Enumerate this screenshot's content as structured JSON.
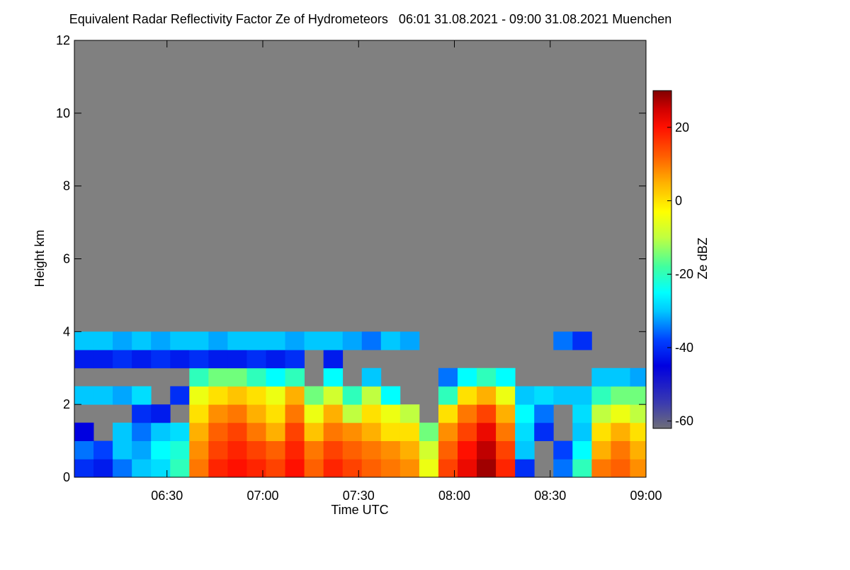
{
  "chart_data": {
    "type": "heatmap",
    "title": "Equivalent Radar Reflectivity Factor Ze of Hydrometeors   06:01 31.08.2021 - 09:00 31.08.2021 Muenchen",
    "x_label": "Time UTC",
    "y_label": "Height km",
    "colorbar_label": "Ze dBZ",
    "xlim": [
      361,
      540
    ],
    "xticks": [
      {
        "value": 390,
        "label": "06:30"
      },
      {
        "value": 420,
        "label": "07:00"
      },
      {
        "value": 450,
        "label": "07:30"
      },
      {
        "value": 480,
        "label": "08:00"
      },
      {
        "value": 510,
        "label": "08:30"
      },
      {
        "value": 540,
        "label": "09:00"
      }
    ],
    "ylim": [
      0,
      12
    ],
    "yticks": [
      0,
      2,
      4,
      6,
      8,
      10,
      12
    ],
    "zlim": [
      -62,
      30
    ],
    "zticks": [
      -60,
      -40,
      -20,
      0,
      20
    ],
    "no_echo_color": "#808080",
    "colormap": [
      [
        -62,
        "#6e6e78"
      ],
      [
        -55,
        "#3a3ab0"
      ],
      [
        -45,
        "#0000e0"
      ],
      [
        -38,
        "#0040ff"
      ],
      [
        -30,
        "#00c8ff"
      ],
      [
        -25,
        "#00ffff"
      ],
      [
        -18,
        "#40ffa0"
      ],
      [
        -10,
        "#c0ff40"
      ],
      [
        -3,
        "#ffff00"
      ],
      [
        5,
        "#ffb000"
      ],
      [
        12,
        "#ff6000"
      ],
      [
        20,
        "#ff1000"
      ],
      [
        25,
        "#d00000"
      ],
      [
        30,
        "#800000"
      ]
    ],
    "x": [
      361,
      367,
      373,
      379,
      385,
      391,
      397,
      403,
      409,
      415,
      421,
      427,
      433,
      439,
      445,
      451,
      457,
      463,
      469,
      475,
      481,
      487,
      493,
      499,
      505,
      511,
      517,
      523,
      529,
      535,
      540
    ],
    "y": [
      0,
      0.5,
      1,
      1.5,
      2,
      2.5,
      3,
      3.5,
      4
    ],
    "z": [
      [
        -40,
        -42,
        -35,
        -30,
        -28,
        -20,
        10,
        18,
        20,
        18,
        15,
        20,
        12,
        18,
        15,
        12,
        10,
        8,
        -5,
        15,
        22,
        28,
        18,
        -40,
        null,
        -35,
        -20,
        10,
        12,
        8
      ],
      [
        -35,
        -38,
        -30,
        -32,
        -25,
        -22,
        8,
        15,
        18,
        15,
        12,
        18,
        10,
        15,
        12,
        10,
        8,
        5,
        -8,
        12,
        20,
        26,
        15,
        -30,
        null,
        -38,
        -25,
        5,
        10,
        5
      ],
      [
        -45,
        null,
        -30,
        -35,
        -30,
        -28,
        5,
        12,
        15,
        10,
        5,
        15,
        3,
        10,
        8,
        5,
        0,
        0,
        -15,
        8,
        15,
        22,
        10,
        -28,
        -40,
        null,
        -30,
        0,
        5,
        0
      ],
      [
        null,
        null,
        null,
        -40,
        -42,
        null,
        0,
        8,
        10,
        5,
        0,
        10,
        -5,
        5,
        -10,
        0,
        -5,
        -10,
        null,
        0,
        10,
        15,
        5,
        -25,
        -35,
        null,
        -28,
        -10,
        -5,
        -10
      ],
      [
        -30,
        -30,
        -32,
        -28,
        null,
        -40,
        -5,
        0,
        3,
        0,
        -5,
        5,
        -15,
        -8,
        -20,
        -10,
        -25,
        null,
        null,
        -20,
        0,
        5,
        -5,
        -30,
        -28,
        -30,
        -30,
        -20,
        -15,
        -15
      ],
      [
        null,
        null,
        null,
        null,
        null,
        null,
        -20,
        -15,
        -15,
        -20,
        -25,
        -20,
        null,
        -25,
        null,
        -30,
        null,
        null,
        null,
        -35,
        -25,
        -20,
        -25,
        null,
        null,
        null,
        null,
        -30,
        -30,
        -32
      ],
      [
        -42,
        -42,
        -40,
        -42,
        -40,
        -42,
        -40,
        -42,
        -42,
        -40,
        -42,
        -40,
        null,
        -42,
        null,
        null,
        null,
        null,
        null,
        null,
        null,
        null,
        null,
        null,
        null,
        null,
        null,
        null,
        null,
        null
      ],
      [
        -30,
        -30,
        -32,
        -30,
        -32,
        -30,
        -30,
        -32,
        -30,
        -30,
        -30,
        -32,
        -30,
        -30,
        -32,
        -35,
        -30,
        -32,
        null,
        null,
        null,
        null,
        null,
        null,
        null,
        -35,
        -40,
        null,
        null,
        null
      ]
    ]
  }
}
